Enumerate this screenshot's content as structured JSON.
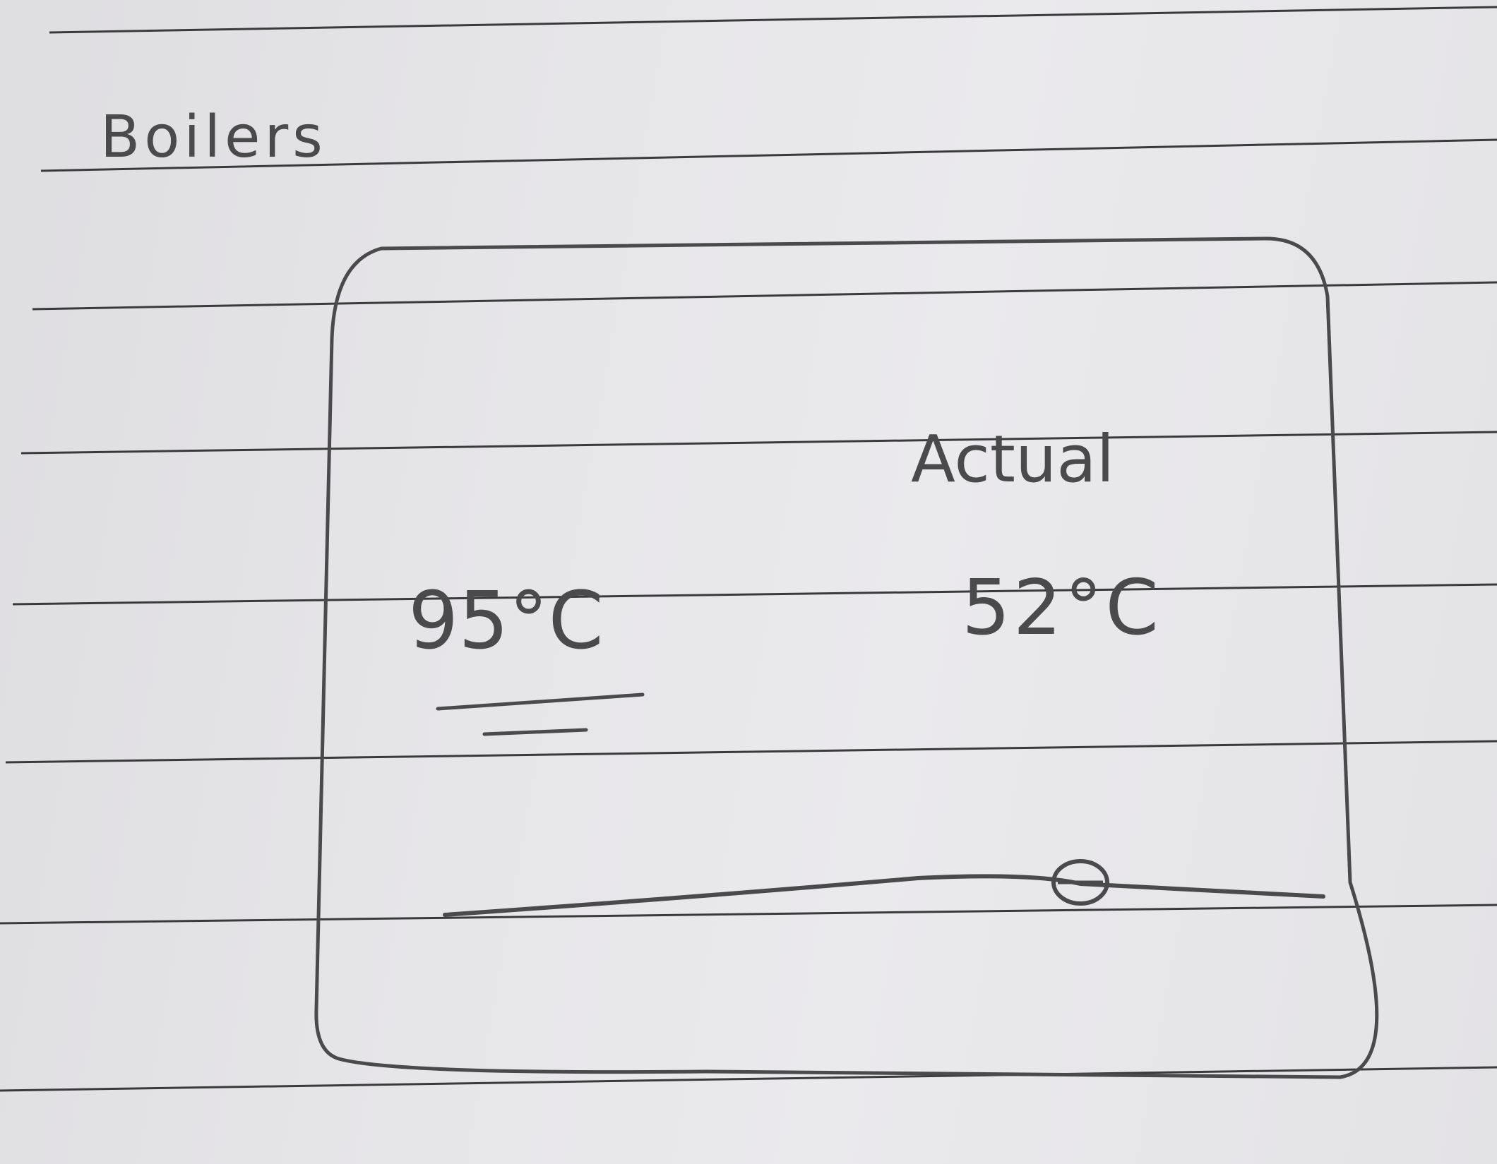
{
  "page": {
    "title": "Boilers"
  },
  "boiler_card": {
    "setpoint": "95°C",
    "actual_label": "Actual",
    "actual_value": "52°C",
    "slider_level": 0.72
  },
  "colors": {
    "pencil": "#4a494c",
    "paper": "#e6e5e8",
    "rule_line": "#3a3a3c"
  }
}
